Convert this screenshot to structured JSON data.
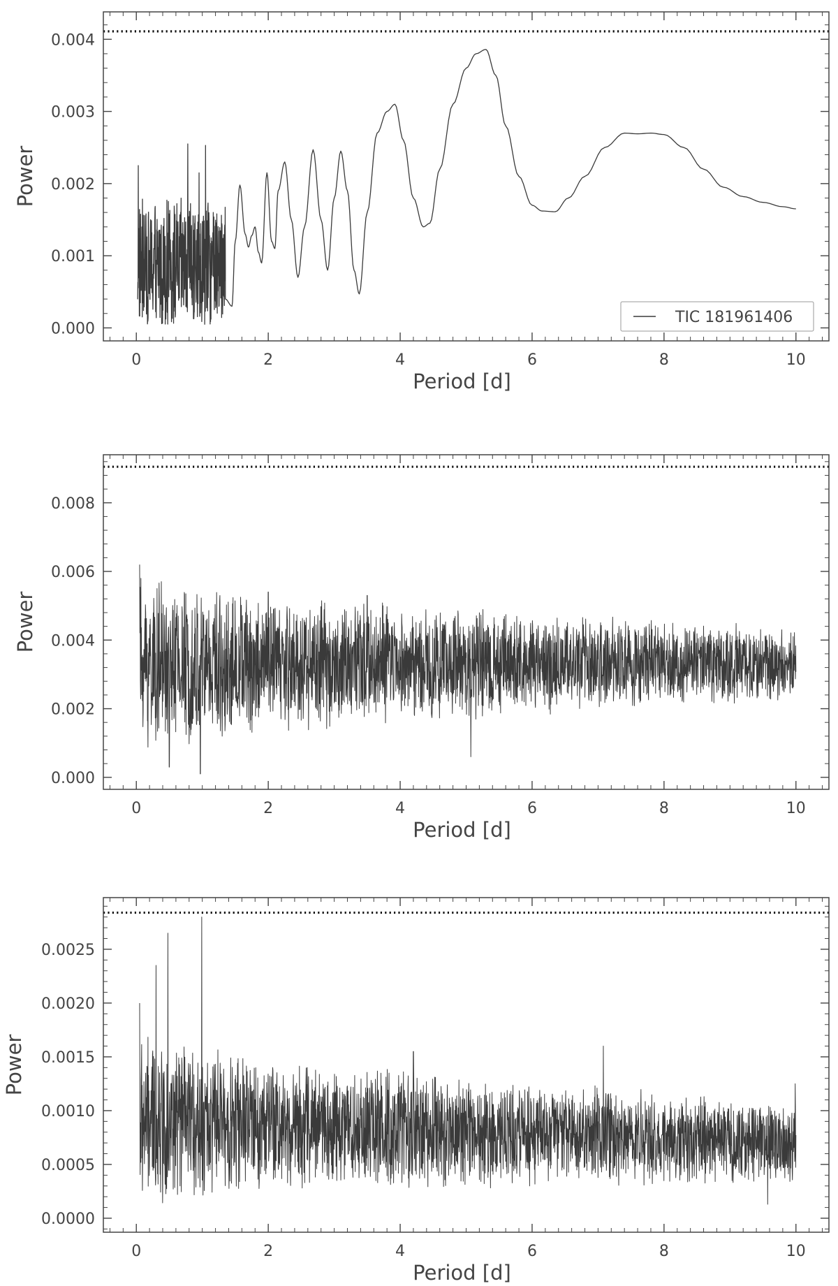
{
  "chart_data": [
    {
      "type": "line",
      "panel": "top",
      "xlabel": "Period [d]",
      "ylabel": "Power",
      "xlim": [
        -0.5,
        10.5
      ],
      "ylim": [
        -0.00018,
        0.00438
      ],
      "xticks": [
        0,
        2,
        4,
        6,
        8,
        10
      ],
      "xtick_labels": [
        "0",
        "2",
        "4",
        "6",
        "8",
        "10"
      ],
      "yticks": [
        0.0,
        0.001,
        0.002,
        0.003,
        0.004
      ],
      "ytick_labels": [
        "0.000",
        "0.001",
        "0.002",
        "0.003",
        "0.004"
      ],
      "threshold": 0.00411,
      "legend": {
        "label": "TIC 181961406",
        "position": "lower-right"
      },
      "series": [
        {
          "name": "TIC 181961406",
          "noise": {
            "x_start": 0.02,
            "x_end": 1.35,
            "low": 5e-05,
            "high": 0.0018,
            "peaks": [
              [
                0.03,
                0.00225
              ],
              [
                0.78,
                0.00255
              ],
              [
                1.05,
                0.00253
              ],
              [
                0.95,
                0.00215
              ],
              [
                1.22,
                0.00158
              ]
            ]
          },
          "x": [
            1.35,
            1.45,
            1.5,
            1.57,
            1.65,
            1.7,
            1.75,
            1.8,
            1.85,
            1.9,
            1.98,
            2.05,
            2.1,
            2.15,
            2.25,
            2.35,
            2.45,
            2.55,
            2.68,
            2.8,
            2.9,
            3.0,
            3.1,
            3.2,
            3.3,
            3.38,
            3.5,
            3.65,
            3.8,
            3.92,
            4.05,
            4.2,
            4.35,
            4.45,
            4.6,
            4.8,
            5.0,
            5.15,
            5.3,
            5.45,
            5.6,
            5.8,
            6.0,
            6.15,
            6.35,
            6.55,
            6.8,
            7.1,
            7.4,
            7.6,
            7.8,
            8.0,
            8.3,
            8.6,
            8.9,
            9.2,
            9.5,
            9.8,
            10.0
          ],
          "y": [
            0.0004,
            0.0003,
            0.0012,
            0.00198,
            0.0013,
            0.00112,
            0.00128,
            0.0014,
            0.00105,
            0.0009,
            0.00215,
            0.0012,
            0.0011,
            0.0019,
            0.0023,
            0.0015,
            0.0007,
            0.0014,
            0.00247,
            0.0015,
            0.0008,
            0.0018,
            0.00245,
            0.0019,
            0.0008,
            0.00047,
            0.0016,
            0.0027,
            0.003,
            0.0031,
            0.0026,
            0.0018,
            0.0014,
            0.00145,
            0.0022,
            0.0031,
            0.0036,
            0.0038,
            0.00386,
            0.0035,
            0.0028,
            0.0021,
            0.0017,
            0.00162,
            0.00161,
            0.0018,
            0.0021,
            0.0025,
            0.0027,
            0.00269,
            0.0027,
            0.00268,
            0.0025,
            0.0022,
            0.00195,
            0.00182,
            0.00174,
            0.00168,
            0.00165
          ]
        }
      ]
    },
    {
      "type": "line",
      "panel": "middle",
      "xlabel": "Period [d]",
      "ylabel": "Power",
      "xlim": [
        -0.5,
        10.5
      ],
      "ylim": [
        -0.00035,
        0.0094
      ],
      "xticks": [
        0,
        2,
        4,
        6,
        8,
        10
      ],
      "xtick_labels": [
        "0",
        "2",
        "4",
        "6",
        "8",
        "10"
      ],
      "yticks": [
        0.0,
        0.002,
        0.004,
        0.006,
        0.008
      ],
      "ytick_labels": [
        "0.000",
        "0.002",
        "0.004",
        "0.006",
        "0.008"
      ],
      "threshold": 0.00905,
      "series": [
        {
          "noise": {
            "x_start": 0.05,
            "x_end": 10.0,
            "center": 0.0033,
            "spread_start": 0.0028,
            "spread_end": 0.0011,
            "peaks": [
              [
                0.5,
                0.0066
              ],
              [
                0.05,
                0.0062
              ],
              [
                0.97,
                0.0001
              ],
              [
                0.5,
                0.0003
              ],
              [
                5.07,
                0.0006
              ],
              [
                2.0,
                0.0054
              ],
              [
                3.5,
                0.0053
              ]
            ]
          }
        }
      ]
    },
    {
      "type": "line",
      "panel": "bottom",
      "xlabel": "Period [d]",
      "ylabel": "Power",
      "xlim": [
        -0.5,
        10.5
      ],
      "ylim": [
        -0.00013,
        0.00298
      ],
      "xticks": [
        0,
        2,
        4,
        6,
        8,
        10
      ],
      "xtick_labels": [
        "0",
        "2",
        "4",
        "6",
        "8",
        "10"
      ],
      "yticks": [
        0.0,
        0.0005,
        0.001,
        0.0015,
        0.002,
        0.0025
      ],
      "ytick_labels": [
        "0.0000",
        "0.0005",
        "0.0010",
        "0.0015",
        "0.0020",
        "0.0025"
      ],
      "threshold": 0.00284,
      "series": [
        {
          "noise": {
            "x_start": 0.05,
            "x_end": 10.0,
            "center_start": 0.0009,
            "center_end": 0.0007,
            "spread_start": 0.0009,
            "spread_end": 0.0004,
            "peaks": [
              [
                0.99,
                0.0028
              ],
              [
                0.48,
                0.00265
              ],
              [
                0.05,
                0.002
              ],
              [
                0.3,
                0.00235
              ],
              [
                7.08,
                0.0016
              ],
              [
                9.57,
                0.00013
              ],
              [
                9.99,
                0.00125
              ],
              [
                4.2,
                0.00155
              ]
            ]
          }
        }
      ]
    }
  ]
}
